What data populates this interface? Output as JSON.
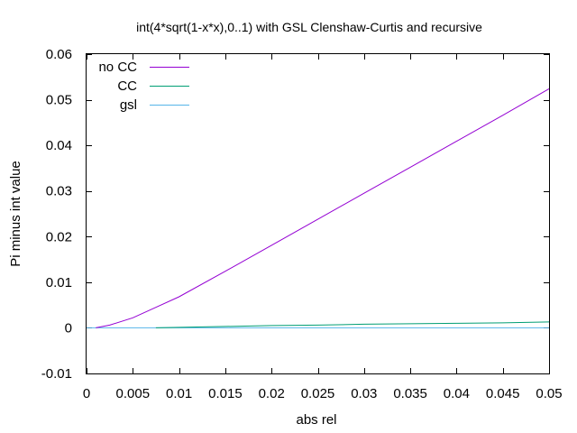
{
  "chart_data": {
    "type": "line",
    "title": "int(4*sqrt(1-x*x),0..1) with GSL Clenshaw-Curtis and recursive",
    "xlabel": "abs rel",
    "ylabel": "Pi minus int value",
    "xlim": [
      0,
      0.05
    ],
    "ylim": [
      -0.01,
      0.06
    ],
    "x_ticks": [
      "0",
      "0.005",
      "0.01",
      "0.015",
      "0.02",
      "0.025",
      "0.03",
      "0.035",
      "0.04",
      "0.045",
      "0.05"
    ],
    "x_tick_values": [
      0,
      0.005,
      0.01,
      0.015,
      0.02,
      0.025,
      0.03,
      0.035,
      0.04,
      0.045,
      0.05
    ],
    "y_ticks": [
      "-0.01",
      "0",
      "0.01",
      "0.02",
      "0.03",
      "0.04",
      "0.05",
      "0.06"
    ],
    "y_tick_values": [
      -0.01,
      0,
      0.01,
      0.02,
      0.03,
      0.04,
      0.05,
      0.06
    ],
    "grid": false,
    "legend_position": "top-left",
    "series": [
      {
        "name": "no CC",
        "color": "#9400d3",
        "x": [
          0.001,
          0.0025,
          0.005,
          0.0075,
          0.01,
          0.015,
          0.02,
          0.025,
          0.03,
          0.035,
          0.04,
          0.045,
          0.05
        ],
        "y": [
          0.0,
          0.0006,
          0.0022,
          0.0045,
          0.0068,
          0.0124,
          0.0181,
          0.0238,
          0.0295,
          0.0352,
          0.0409,
          0.0466,
          0.0524
        ]
      },
      {
        "name": "CC",
        "color": "#009e73",
        "x": [
          0.0075,
          0.01,
          0.015,
          0.02,
          0.025,
          0.03,
          0.035,
          0.04,
          0.045,
          0.05
        ],
        "y": [
          0.0,
          0.0001,
          0.0003,
          0.0005,
          0.0006,
          0.0008,
          0.0009,
          0.001,
          0.0011,
          0.0013
        ]
      },
      {
        "name": "gsl",
        "color": "#56b4e9",
        "x": [
          0.0,
          0.05
        ],
        "y": [
          0.0,
          0.0
        ]
      }
    ]
  }
}
